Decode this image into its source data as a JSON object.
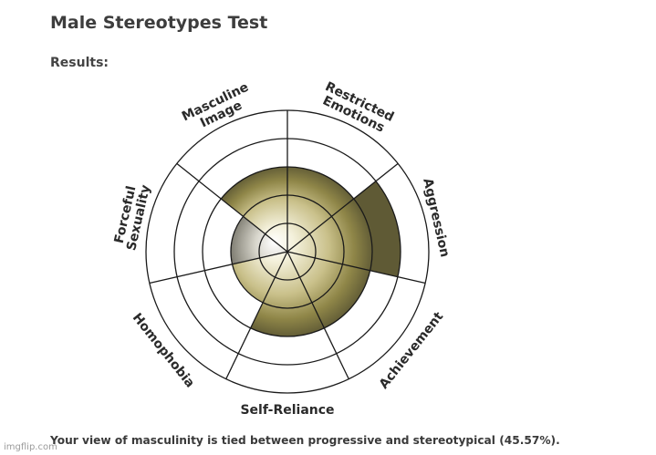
{
  "page": {
    "title": "Male Stereotypes Test",
    "results_label": "Results:",
    "summary": "Your view of masculinity is tied between progressive and stereotypical (45.57%).",
    "watermark": "imgflip.com"
  },
  "chart_data": {
    "type": "polar-area",
    "categories": [
      "Restricted Emotions",
      "Aggression",
      "Achievement",
      "Self-Reliance",
      "Homophobia",
      "Forceful Sexuality",
      "Masculine Image"
    ],
    "category_lines": [
      [
        "Restricted",
        "Emotions"
      ],
      [
        "Aggression"
      ],
      [
        "Achievement"
      ],
      [
        "Self-Reliance"
      ],
      [
        "Homophobia"
      ],
      [
        "Forceful",
        "Sexuality"
      ],
      [
        "Masculine",
        "Image"
      ]
    ],
    "values": [
      3,
      4,
      3,
      3,
      2,
      2,
      3
    ],
    "rlim": [
      0,
      5
    ],
    "ring_count": 5,
    "colors": {
      "fill_base": "#8f8648",
      "fill_highlight": "#f4f1dc",
      "fill_shadow": "#2f2d24",
      "grid": "#1a1a1a",
      "label": "#2a2a2a"
    }
  }
}
